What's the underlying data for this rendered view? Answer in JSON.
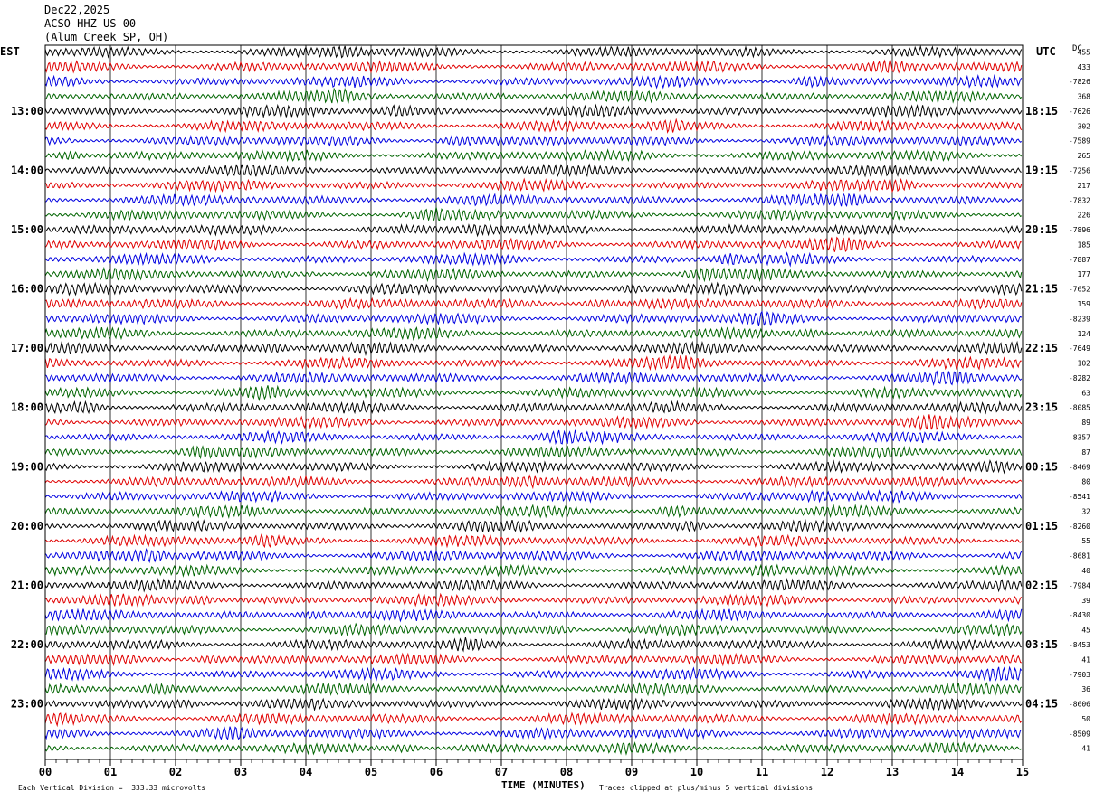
{
  "header": {
    "date": "Dec22,2025",
    "station": "ACSO HHZ US 00",
    "location": "(Alum Creek SP, OH)"
  },
  "timezones": {
    "left": "EST",
    "right": "UTC",
    "dc_label": "DC"
  },
  "footer": {
    "scale_note": "Each Vertical Division =  333.33 microvolts",
    "clip_note": "Traces clipped at plus/minus 5 vertical divisions"
  },
  "chart_data": {
    "type": "line",
    "title": "",
    "xlabel": "TIME (MINUTES)",
    "xlim": [
      0,
      15
    ],
    "x_ticks": [
      "00",
      "01",
      "02",
      "03",
      "04",
      "05",
      "06",
      "07",
      "08",
      "09",
      "10",
      "11",
      "12",
      "13",
      "14",
      "15"
    ],
    "grid": "vertical lines at each minute",
    "series_colors": [
      "#000000",
      "#e00000",
      "#0000e0",
      "#006400"
    ],
    "left_hour_labels": [
      "13:00",
      "14:00",
      "15:00",
      "16:00",
      "17:00",
      "18:00",
      "19:00",
      "20:00",
      "21:00",
      "22:00",
      "23:00"
    ],
    "right_hour_labels": [
      "18:15",
      "19:15",
      "20:15",
      "21:15",
      "22:15",
      "23:15",
      "00:15",
      "01:15",
      "02:15",
      "03:15",
      "04:15"
    ],
    "dc_offsets": [
      "455",
      "433",
      "-7826",
      "368",
      "-7626",
      "302",
      "-7589",
      "265",
      "-7256",
      "217",
      "-7832",
      "226",
      "-7896",
      "185",
      "-7887",
      "177",
      "-7652",
      "159",
      "-8239",
      "124",
      "-7649",
      "102",
      "-8282",
      "63",
      "-8085",
      "89",
      "-8357",
      "87",
      "-8469",
      "80",
      "-8541",
      "32",
      "-8260",
      "55",
      "-8681",
      "40",
      "-7984",
      "39",
      "-8430",
      "45",
      "-8453",
      "41",
      "-7903",
      "36",
      "-8606",
      "50",
      "-8509",
      "41"
    ]
  }
}
